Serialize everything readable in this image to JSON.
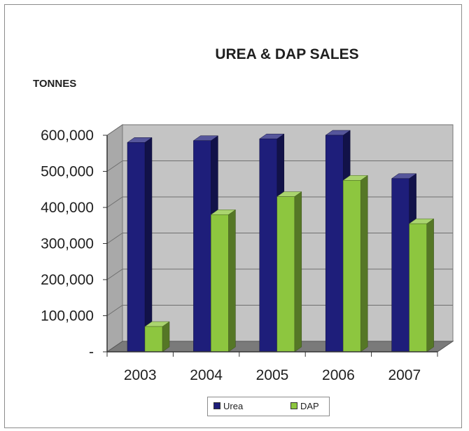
{
  "chart_data": {
    "type": "bar",
    "title": "UREA & DAP SALES",
    "ylabel": "TONNES",
    "xlabel": "",
    "categories": [
      "2003",
      "2004",
      "2005",
      "2006",
      "2007"
    ],
    "series": [
      {
        "name": "Urea",
        "values": [
          580000,
          585000,
          590000,
          600000,
          480000
        ],
        "color": "#1e1e7a"
      },
      {
        "name": "DAP",
        "values": [
          70000,
          380000,
          430000,
          475000,
          355000
        ],
        "color": "#8dc63f"
      }
    ],
    "ylim": [
      0,
      600000
    ],
    "yticks": [
      {
        "value": 0,
        "label": "-"
      },
      {
        "value": 100000,
        "label": "100,000"
      },
      {
        "value": 200000,
        "label": "200,000"
      },
      {
        "value": 300000,
        "label": "300,000"
      },
      {
        "value": 400000,
        "label": "400,000"
      },
      {
        "value": 500000,
        "label": "500,000"
      },
      {
        "value": 600000,
        "label": "600,000"
      }
    ],
    "grid": true,
    "legend_position": "bottom"
  }
}
